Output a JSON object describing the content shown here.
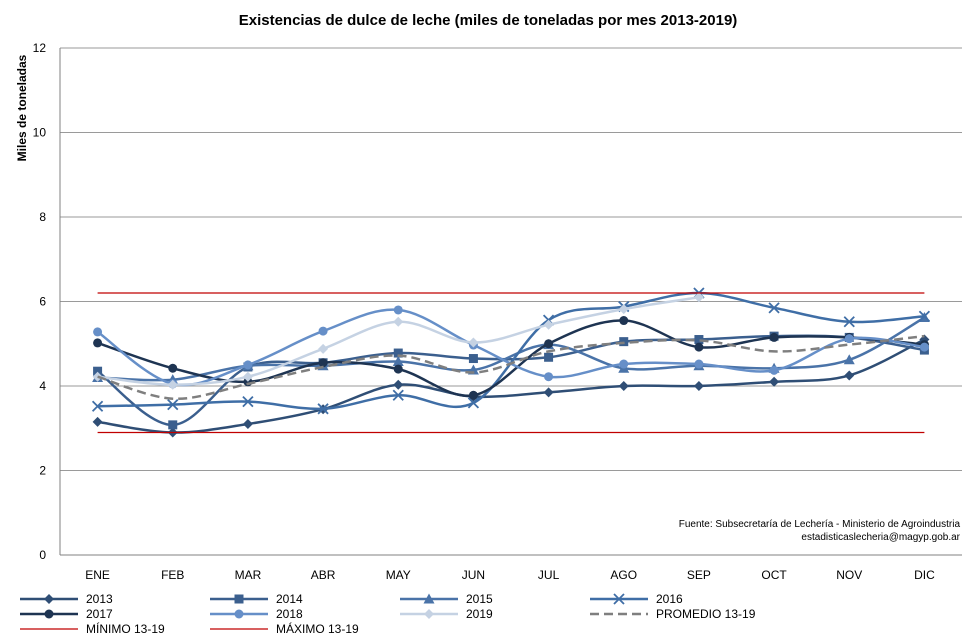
{
  "chart_data": {
    "type": "line",
    "title": "Existencias de dulce de leche (miles de toneladas por mes 2013-2019)",
    "ylabel": "Miles de toneladas",
    "xlabel": "",
    "categories": [
      "ENE",
      "FEB",
      "MAR",
      "ABR",
      "MAY",
      "JUN",
      "JUL",
      "AGO",
      "SEP",
      "OCT",
      "NOV",
      "DIC"
    ],
    "ylim": [
      0,
      12
    ],
    "yticks": [
      0,
      2,
      4,
      6,
      8,
      10,
      12
    ],
    "grid": true,
    "legend_position": "bottom",
    "source_line1": "Fuente: Subsecretaría de Lechería - Ministerio de Agroindustria",
    "source_line2": "estadisticaslecheria@magyp.gob.ar",
    "series": [
      {
        "name": "2013",
        "color": "#2f4e75",
        "marker": "diamond",
        "style": "smooth",
        "values": [
          3.15,
          2.9,
          3.1,
          3.45,
          4.03,
          3.75,
          3.85,
          4.0,
          4.0,
          4.1,
          4.25,
          5.1
        ]
      },
      {
        "name": "2014",
        "color": "#3b5f8e",
        "marker": "square",
        "style": "smooth",
        "values": [
          4.35,
          3.08,
          4.45,
          4.55,
          4.78,
          4.65,
          4.68,
          5.05,
          5.1,
          5.18,
          5.15,
          4.85
        ]
      },
      {
        "name": "2015",
        "color": "#4a73a8",
        "marker": "triangle",
        "style": "smooth",
        "values": [
          4.2,
          4.15,
          4.48,
          4.48,
          4.58,
          4.38,
          4.98,
          4.42,
          4.48,
          4.42,
          4.62,
          5.62
        ]
      },
      {
        "name": "2016",
        "color": "#3f6ea6",
        "marker": "x",
        "style": "smooth",
        "values": [
          3.52,
          3.56,
          3.63,
          3.46,
          3.78,
          3.6,
          5.56,
          5.88,
          6.2,
          5.85,
          5.52,
          5.65
        ]
      },
      {
        "name": "2017",
        "color": "#1e3452",
        "marker": "circle",
        "style": "smooth",
        "values": [
          5.02,
          4.42,
          4.1,
          4.55,
          4.4,
          3.78,
          5.0,
          5.55,
          4.92,
          5.15,
          5.15,
          4.98
        ]
      },
      {
        "name": "2018",
        "color": "#668fc8",
        "marker": "circle",
        "style": "smooth",
        "values": [
          5.28,
          4.05,
          4.5,
          5.3,
          5.8,
          4.97,
          4.22,
          4.52,
          4.52,
          4.37,
          5.12,
          4.92
        ]
      },
      {
        "name": "2019",
        "color": "#c5d2e3",
        "marker": "diamond",
        "style": "smooth",
        "values": [
          4.22,
          4.03,
          4.22,
          4.88,
          5.52,
          5.03,
          5.45,
          5.82,
          6.1,
          null,
          null,
          null
        ]
      },
      {
        "name": "PROMEDIO 13-19",
        "color": "#7f7f7f",
        "marker": "none",
        "style": "dashed",
        "values": [
          4.22,
          3.7,
          4.05,
          4.45,
          4.72,
          4.32,
          4.82,
          5.02,
          5.08,
          4.82,
          4.98,
          5.18
        ]
      },
      {
        "name": "MÍNIMO 13-19",
        "color": "#c00000",
        "marker": "none",
        "style": "straight",
        "values": [
          2.9,
          2.9,
          2.9,
          2.9,
          2.9,
          2.9,
          2.9,
          2.9,
          2.9,
          2.9,
          2.9,
          2.9
        ]
      },
      {
        "name": "MÁXIMO 13-19",
        "color": "#c00000",
        "marker": "none",
        "style": "straight",
        "values": [
          6.2,
          6.2,
          6.2,
          6.2,
          6.2,
          6.2,
          6.2,
          6.2,
          6.2,
          6.2,
          6.2,
          6.2
        ]
      }
    ]
  }
}
